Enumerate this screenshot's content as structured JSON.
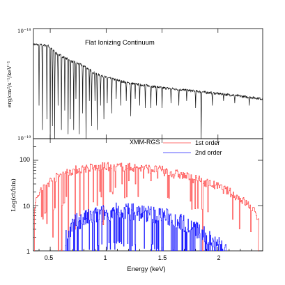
{
  "chart_data": [
    {
      "type": "line",
      "title": "Flat Ionizing Continuum",
      "ylabel": "erg/cm²/s⁻¹/keV⁻¹",
      "yscale": "log",
      "ylim": [
        1e-19,
        1e-18
      ],
      "xlim": [
        0.35,
        2.4
      ],
      "y_tick_labels": [
        {
          "value": 1e-18,
          "mantissa": "10",
          "exponent": "−18"
        },
        {
          "value": 1e-19,
          "mantissa": "10",
          "exponent": "−19"
        }
      ],
      "series": [
        {
          "color": "#000000",
          "continuum": [
            [
              0.35,
              7.2e-19
            ],
            [
              0.48,
              7e-19
            ],
            [
              0.55,
              6e-19
            ],
            [
              0.7,
              5e-19
            ],
            [
              0.8,
              4.6e-19
            ],
            [
              0.9,
              3.9e-19
            ],
            [
              1.0,
              3.6e-19
            ],
            [
              1.2,
              3.2e-19
            ],
            [
              1.5,
              2.9e-19
            ],
            [
              1.8,
              2.7e-19
            ],
            [
              2.1,
              2.5e-19
            ],
            [
              2.4,
              2.3e-19
            ]
          ],
          "absorption_lines": [
            [
              0.4,
              2e-19
            ],
            [
              0.43,
              1.2e-19
            ],
            [
              0.47,
              1.5e-19
            ],
            [
              0.5,
              1e-19
            ],
            [
              0.52,
              1.3e-19
            ],
            [
              0.54,
              1e-19
            ],
            [
              0.57,
              2e-19
            ],
            [
              0.6,
              1.2e-19
            ],
            [
              0.63,
              1.8e-19
            ],
            [
              0.66,
              1.1e-19
            ],
            [
              0.68,
              1.5e-19
            ],
            [
              0.71,
              1.2e-19
            ],
            [
              0.73,
              2.3e-19
            ],
            [
              0.76,
              1.1e-19
            ],
            [
              0.79,
              1.7e-19
            ],
            [
              0.82,
              1e-19
            ],
            [
              0.85,
              2.2e-19
            ],
            [
              0.87,
              1.3e-19
            ],
            [
              0.9,
              2.2e-19
            ],
            [
              0.92,
              1.2e-19
            ],
            [
              0.95,
              2e-19
            ],
            [
              0.98,
              1.5e-19
            ],
            [
              1.01,
              2.1e-19
            ],
            [
              1.05,
              1.7e-19
            ],
            [
              1.09,
              2.3e-19
            ],
            [
              1.13,
              2e-19
            ],
            [
              1.18,
              2.2e-19
            ],
            [
              1.22,
              1.6e-19
            ],
            [
              1.26,
              2.3e-19
            ],
            [
              1.3,
              2e-19
            ],
            [
              1.35,
              1.9e-19
            ],
            [
              1.4,
              1.9e-19
            ],
            [
              1.45,
              2e-19
            ],
            [
              1.5,
              1.9e-19
            ],
            [
              1.58,
              2.1e-19
            ],
            [
              1.65,
              2e-19
            ],
            [
              1.72,
              2.2e-19
            ],
            [
              1.8,
              1.9e-19
            ],
            [
              1.85,
              1e-19
            ],
            [
              1.95,
              2e-19
            ],
            [
              2.05,
              2.2e-19
            ],
            [
              2.15,
              2.1e-19
            ],
            [
              2.28,
              2e-19
            ]
          ]
        }
      ]
    },
    {
      "type": "line",
      "title": "XMM-RGS",
      "xlabel": "Energy (keV)",
      "ylabel": "Log(ct/bin)",
      "yscale": "log",
      "ylim": [
        1,
        300
      ],
      "xlim": [
        0.35,
        2.4
      ],
      "x_ticks": [
        0.5,
        1,
        1.5,
        2
      ],
      "x_tick_labels": [
        "0.5",
        "1",
        "1.5",
        "2"
      ],
      "y_ticks": [
        1,
        10,
        100
      ],
      "y_tick_labels": [
        "1",
        "10",
        "100"
      ],
      "legend_position": "top-center",
      "series": [
        {
          "name": "1st order",
          "color": "#ff4040",
          "profile": [
            [
              0.36,
              10
            ],
            [
              0.4,
              20
            ],
            [
              0.5,
              35
            ],
            [
              0.6,
              50
            ],
            [
              0.7,
              60
            ],
            [
              0.8,
              66
            ],
            [
              0.9,
              70
            ],
            [
              1.0,
              72
            ],
            [
              1.1,
              72
            ],
            [
              1.2,
              70
            ],
            [
              1.3,
              68
            ],
            [
              1.4,
              64
            ],
            [
              1.5,
              60
            ],
            [
              1.6,
              52
            ],
            [
              1.7,
              45
            ],
            [
              1.8,
              38
            ],
            [
              1.9,
              32
            ],
            [
              2.0,
              26
            ],
            [
              2.1,
              20
            ],
            [
              2.2,
              14
            ],
            [
              2.3,
              9
            ],
            [
              2.36,
              5
            ]
          ],
          "dips": [
            [
              0.43,
              5
            ],
            [
              0.47,
              4
            ],
            [
              0.52,
              2
            ],
            [
              0.57,
              1
            ],
            [
              0.6,
              1
            ],
            [
              0.66,
              2
            ],
            [
              0.72,
              3
            ],
            [
              0.76,
              6
            ],
            [
              0.8,
              8
            ],
            [
              0.84,
              5
            ],
            [
              0.88,
              12
            ],
            [
              0.92,
              10
            ],
            [
              0.97,
              15
            ],
            [
              1.03,
              20
            ],
            [
              1.08,
              25
            ],
            [
              1.14,
              30
            ],
            [
              1.2,
              35
            ],
            [
              1.26,
              30
            ],
            [
              1.33,
              40
            ],
            [
              1.4,
              35
            ],
            [
              1.46,
              40
            ],
            [
              1.52,
              45
            ],
            [
              1.6,
              40
            ],
            [
              1.86,
              1
            ]
          ]
        },
        {
          "name": "2nd order",
          "color": "#2020ff",
          "profile": [
            [
              0.62,
              1
            ],
            [
              0.64,
              2
            ],
            [
              0.7,
              4
            ],
            [
              0.8,
              5
            ],
            [
              0.9,
              6
            ],
            [
              1.0,
              7
            ],
            [
              1.1,
              7.5
            ],
            [
              1.2,
              7.5
            ],
            [
              1.3,
              7
            ],
            [
              1.4,
              6.5
            ],
            [
              1.5,
              6
            ],
            [
              1.6,
              5
            ],
            [
              1.7,
              4
            ],
            [
              1.8,
              3
            ],
            [
              1.9,
              2
            ],
            [
              2.0,
              1.5
            ],
            [
              2.08,
              1
            ]
          ]
        }
      ]
    }
  ]
}
